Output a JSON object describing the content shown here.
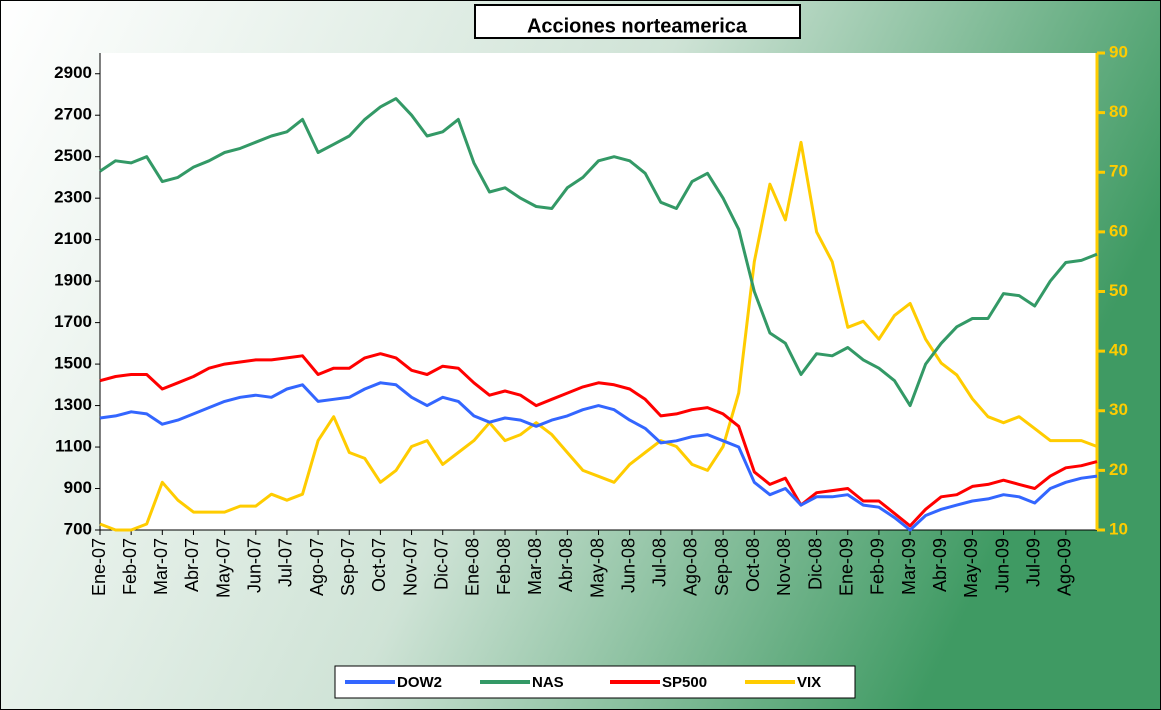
{
  "chart_data": {
    "type": "line",
    "title": "Acciones norteamerica",
    "categories": [
      "Ene-07",
      null,
      "Feb-07",
      null,
      "Mar-07",
      null,
      "Abr-07",
      null,
      "May-07",
      null,
      "Jun-07",
      null,
      "Jul-07",
      null,
      "Ago-07",
      null,
      "Sep-07",
      null,
      "Oct-07",
      null,
      "Nov-07",
      null,
      "Dic-07",
      null,
      "Ene-08",
      null,
      "Feb-08",
      null,
      "Mar-08",
      null,
      "Abr-08",
      null,
      "May-08",
      null,
      "Jun-08",
      null,
      "Jul-08",
      null,
      "Ago-08",
      null,
      "Sep-08",
      null,
      "Oct-08",
      null,
      "Nov-08",
      null,
      "Dic-08",
      null,
      "Ene-09",
      null,
      "Feb-09",
      null,
      "Mar-09",
      null,
      "Abr-09",
      null,
      "May-09",
      null,
      "Jun-09",
      null,
      "Jul-09",
      null,
      "Ago-09",
      null,
      null
    ],
    "series": [
      {
        "name": "DOW2",
        "color": "#3366ff",
        "values": [
          1240,
          1250,
          1270,
          1260,
          1210,
          1230,
          1260,
          1290,
          1320,
          1340,
          1350,
          1340,
          1380,
          1400,
          1320,
          1330,
          1340,
          1380,
          1410,
          1400,
          1340,
          1300,
          1340,
          1320,
          1250,
          1220,
          1240,
          1230,
          1200,
          1230,
          1250,
          1280,
          1300,
          1280,
          1230,
          1190,
          1120,
          1130,
          1150,
          1160,
          1130,
          1100,
          930,
          870,
          900,
          820,
          860,
          860,
          870,
          820,
          810,
          760,
          700,
          770,
          800,
          820,
          840,
          850,
          870,
          860,
          830,
          900,
          930,
          950,
          960
        ]
      },
      {
        "name": "NAS",
        "color": "#339966",
        "values": [
          2430,
          2480,
          2470,
          2500,
          2380,
          2400,
          2450,
          2480,
          2520,
          2540,
          2570,
          2600,
          2620,
          2680,
          2520,
          2560,
          2600,
          2680,
          2740,
          2780,
          2700,
          2600,
          2620,
          2680,
          2470,
          2330,
          2350,
          2300,
          2260,
          2250,
          2350,
          2400,
          2480,
          2500,
          2480,
          2420,
          2280,
          2250,
          2380,
          2420,
          2300,
          2150,
          1850,
          1650,
          1600,
          1450,
          1550,
          1540,
          1580,
          1520,
          1480,
          1420,
          1300,
          1500,
          1600,
          1680,
          1720,
          1720,
          1840,
          1830,
          1780,
          1900,
          1990,
          2000,
          2030
        ]
      },
      {
        "name": "SP500",
        "color": "#ff0000",
        "values": [
          1420,
          1440,
          1450,
          1450,
          1380,
          1410,
          1440,
          1480,
          1500,
          1510,
          1520,
          1520,
          1530,
          1540,
          1450,
          1480,
          1480,
          1530,
          1550,
          1530,
          1470,
          1450,
          1490,
          1480,
          1410,
          1350,
          1370,
          1350,
          1300,
          1330,
          1360,
          1390,
          1410,
          1400,
          1380,
          1330,
          1250,
          1260,
          1280,
          1290,
          1260,
          1200,
          980,
          920,
          950,
          820,
          880,
          890,
          900,
          840,
          840,
          780,
          720,
          800,
          860,
          870,
          910,
          920,
          940,
          920,
          900,
          960,
          1000,
          1010,
          1030
        ]
      },
      {
        "name": "VIX",
        "color": "#ffcc00",
        "axis": "y2",
        "values": [
          11,
          10,
          10,
          11,
          18,
          15,
          13,
          13,
          13,
          14,
          14,
          16,
          15,
          16,
          25,
          29,
          23,
          22,
          18,
          20,
          24,
          25,
          21,
          23,
          25,
          28,
          25,
          26,
          28,
          26,
          23,
          20,
          19,
          18,
          21,
          23,
          25,
          24,
          21,
          20,
          24,
          33,
          55,
          68,
          62,
          75,
          60,
          55,
          44,
          45,
          42,
          46,
          48,
          42,
          38,
          36,
          32,
          29,
          28,
          29,
          27,
          25,
          25,
          25,
          24
        ]
      }
    ],
    "ylim": [
      700,
      3000
    ],
    "yticks": [
      700,
      900,
      1100,
      1300,
      1500,
      1700,
      1900,
      2100,
      2300,
      2500,
      2700,
      2900
    ],
    "y2lim": [
      10,
      90
    ],
    "y2ticks": [
      10,
      20,
      30,
      40,
      50,
      60,
      70,
      80,
      90
    ],
    "y2color": "#ffcc00",
    "legend": "bottom"
  }
}
